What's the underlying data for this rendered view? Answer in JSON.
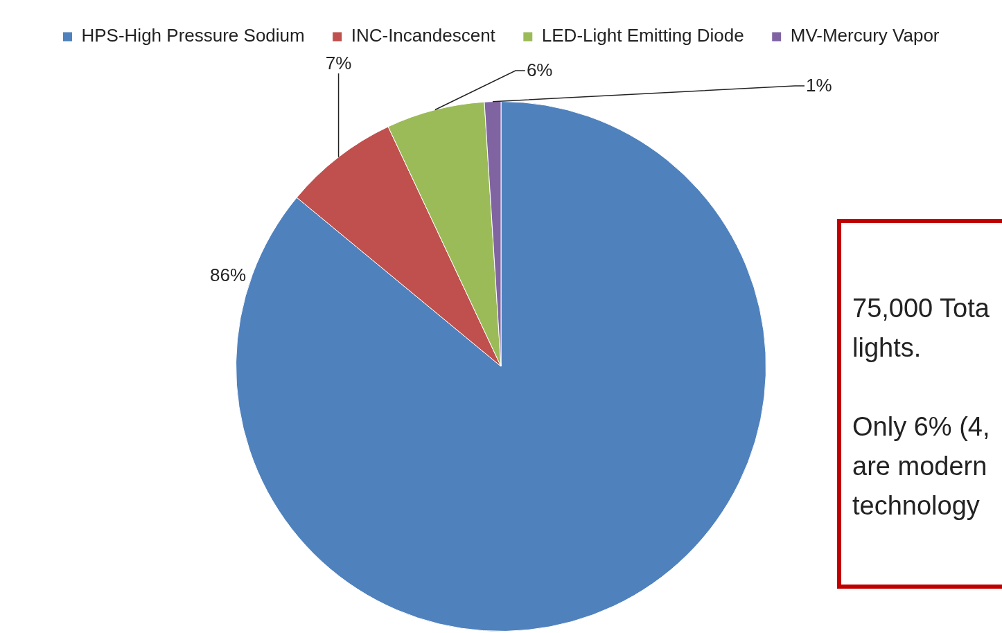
{
  "chart_data": {
    "type": "pie",
    "categories": [
      "HPS-High Pressure Sodium",
      "INC-Incandescent",
      "LED-Light Emitting Diode",
      "MV-Mercury Vapor"
    ],
    "values": [
      86,
      7,
      6,
      1
    ],
    "colors": [
      "#4f81bd",
      "#c0504d",
      "#9bbb59",
      "#8064a2"
    ],
    "value_labels": [
      "86%",
      "7%",
      "6%",
      "1%"
    ],
    "legend": "top",
    "annotations": [
      "75,000 Tota\nlights.",
      "Only 6% (4,\nare modern\ntechnology"
    ]
  }
}
